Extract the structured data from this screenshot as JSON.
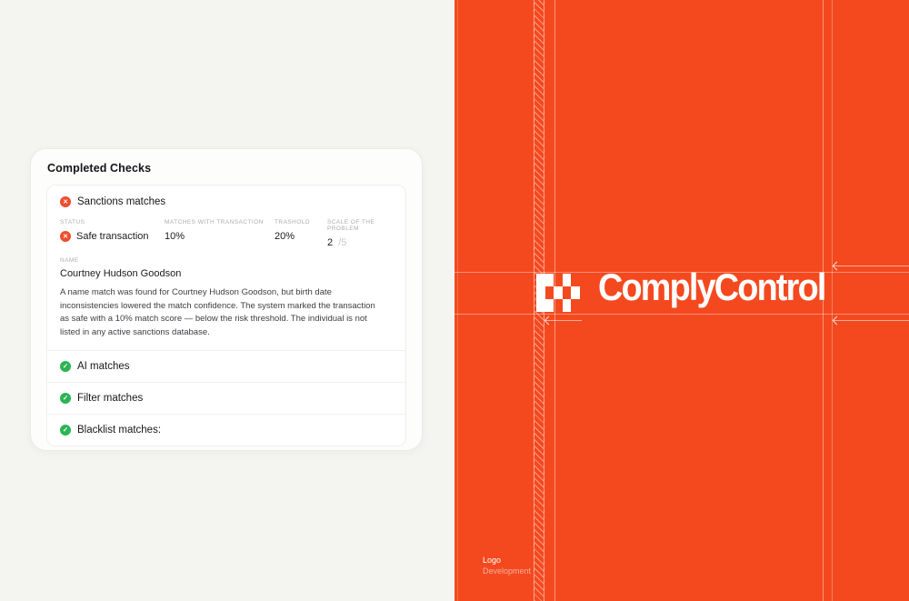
{
  "card": {
    "title": "Completed Checks",
    "sanctions": {
      "label": "Sanctions matches",
      "stats": [
        {
          "label": "STATUS",
          "value": "Safe transaction"
        },
        {
          "label": "MATCHES WITH TRANSACTION",
          "value": "10%"
        },
        {
          "label": "TRASHOLD",
          "value": "20%"
        },
        {
          "label": "SCALE OF THE PROBLEM",
          "value": "2",
          "suffix": "/5"
        }
      ],
      "name_label": "NAME",
      "name": "Courtney Hudson Goodson",
      "description": "A name match was found for Courtney Hudson Goodson, but birth date inconsistencies lowered the match confidence. The system marked the transaction as safe with a 10% match score — below the risk threshold. The individual is not listed in any active sanctions database."
    },
    "checks": [
      {
        "label": "AI matches",
        "status": "pass"
      },
      {
        "label": "Filter matches",
        "status": "pass"
      },
      {
        "label": "Blacklist matches:",
        "status": "pass"
      }
    ]
  },
  "brand": {
    "name": "ComplyControl",
    "caption_top": "Logo",
    "caption_bottom": "Development",
    "logo_grid": [
      [
        1,
        1,
        0,
        1,
        0
      ],
      [
        1,
        0,
        1,
        0,
        1
      ],
      [
        1,
        1,
        0,
        1,
        0
      ]
    ]
  },
  "icons": {
    "error_glyph": "✕",
    "success_glyph": "✓"
  },
  "colors": {
    "orange": "#F4491F",
    "error_red": "#EE4E2D",
    "success_green": "#2AB455"
  }
}
